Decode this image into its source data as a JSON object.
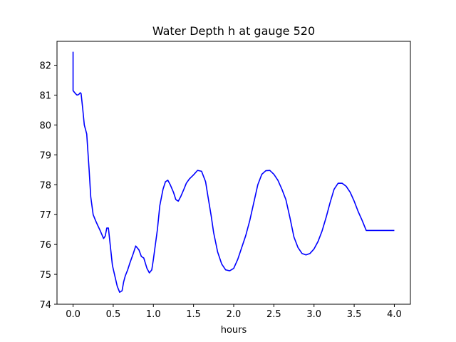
{
  "chart_data": {
    "type": "line",
    "title": "Water Depth h at gauge 520",
    "xlabel": "hours",
    "ylabel": "",
    "xlim": [
      -0.2,
      4.2
    ],
    "ylim": [
      74.0,
      82.8
    ],
    "xticks": [
      0.0,
      0.5,
      1.0,
      1.5,
      2.0,
      2.5,
      3.0,
      3.5,
      4.0
    ],
    "xtick_labels": [
      "0.0",
      "0.5",
      "1.0",
      "1.5",
      "2.0",
      "2.5",
      "3.0",
      "3.5",
      "4.0"
    ],
    "yticks": [
      74,
      75,
      76,
      77,
      78,
      79,
      80,
      81,
      82
    ],
    "ytick_labels": [
      "74",
      "75",
      "76",
      "77",
      "78",
      "79",
      "80",
      "81",
      "82"
    ],
    "grid": false,
    "series": [
      {
        "color": "#0000ff",
        "x": [
          0.0,
          0.0,
          0.0,
          0.03,
          0.05,
          0.07,
          0.09,
          0.1,
          0.12,
          0.14,
          0.17,
          0.2,
          0.22,
          0.25,
          0.28,
          0.3,
          0.34,
          0.38,
          0.4,
          0.42,
          0.44,
          0.45,
          0.47,
          0.49,
          0.52,
          0.55,
          0.58,
          0.61,
          0.63,
          0.65,
          0.68,
          0.71,
          0.75,
          0.78,
          0.82,
          0.85,
          0.88,
          0.92,
          0.95,
          0.98,
          1.0,
          1.02,
          1.05,
          1.08,
          1.12,
          1.15,
          1.18,
          1.21,
          1.25,
          1.28,
          1.31,
          1.34,
          1.38,
          1.41,
          1.45,
          1.5,
          1.55,
          1.6,
          1.65,
          1.68,
          1.72,
          1.75,
          1.8,
          1.85,
          1.9,
          1.95,
          2.0,
          2.05,
          2.1,
          2.15,
          2.2,
          2.25,
          2.3,
          2.35,
          2.4,
          2.45,
          2.5,
          2.55,
          2.6,
          2.65,
          2.7,
          2.75,
          2.8,
          2.85,
          2.9,
          2.95,
          3.0,
          3.05,
          3.1,
          3.15,
          3.2,
          3.25,
          3.3,
          3.35,
          3.4,
          3.45,
          3.5,
          3.55,
          3.6,
          3.65,
          3.7,
          3.75,
          3.8,
          3.85,
          3.9,
          3.95,
          4.0
        ],
        "y": [
          82.45,
          81.2,
          81.15,
          81.05,
          81.0,
          81.02,
          81.08,
          81.05,
          80.55,
          80.0,
          79.7,
          78.5,
          77.6,
          77.0,
          76.8,
          76.68,
          76.45,
          76.2,
          76.28,
          76.55,
          76.55,
          76.3,
          75.8,
          75.3,
          74.95,
          74.6,
          74.4,
          74.45,
          74.75,
          74.95,
          75.15,
          75.4,
          75.7,
          75.95,
          75.82,
          75.6,
          75.55,
          75.2,
          75.05,
          75.15,
          75.5,
          75.9,
          76.5,
          77.3,
          77.85,
          78.1,
          78.15,
          78.0,
          77.75,
          77.5,
          77.45,
          77.6,
          77.85,
          78.05,
          78.2,
          78.33,
          78.48,
          78.45,
          78.1,
          77.6,
          76.95,
          76.4,
          75.75,
          75.35,
          75.15,
          75.12,
          75.2,
          75.5,
          75.9,
          76.3,
          76.8,
          77.4,
          78.0,
          78.35,
          78.47,
          78.48,
          78.35,
          78.15,
          77.85,
          77.5,
          76.9,
          76.25,
          75.9,
          75.7,
          75.65,
          75.7,
          75.85,
          76.1,
          76.45,
          76.9,
          77.4,
          77.85,
          78.05,
          78.05,
          77.95,
          77.75,
          77.45,
          77.1,
          76.8,
          76.47,
          76.47,
          76.47,
          76.47,
          76.47,
          76.47,
          76.47,
          76.47
        ]
      }
    ]
  }
}
